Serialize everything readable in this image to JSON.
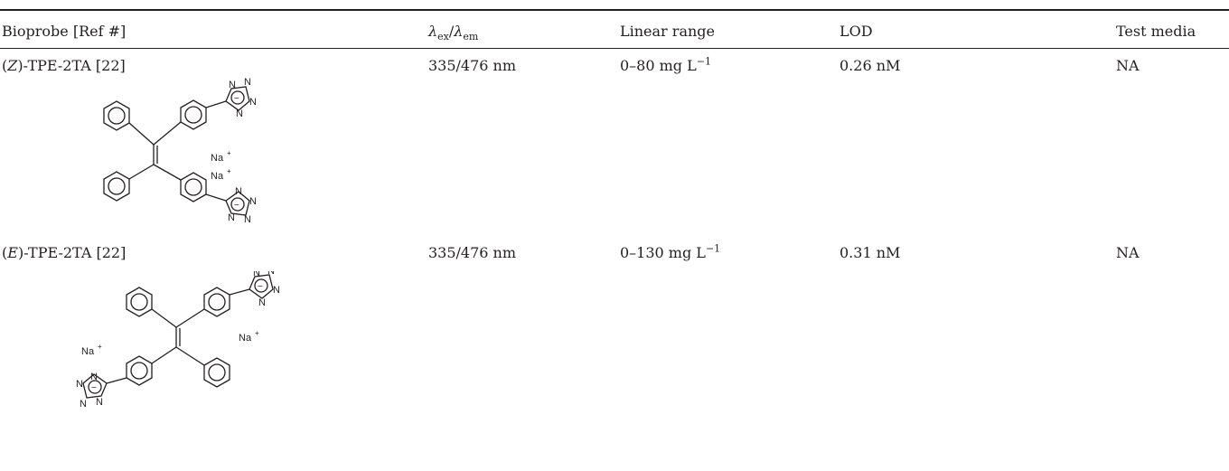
{
  "table": {
    "headers": {
      "bioprobe": "Bioprobe [Ref #]",
      "lambda_ex_sub": "ex",
      "lambda_sep": "/",
      "lambda_em_sub": "em",
      "linear_range": "Linear range",
      "lod": "LOD",
      "test_media": "Test media"
    },
    "rows": [
      {
        "isomer": "Z",
        "name_suffix": "-TPE-2TA [22]",
        "wavelengths": "335/476 nm",
        "linear_range_value": "0–80 mg L",
        "linear_range_exp": "−1",
        "lod": "0.26 nM",
        "test_media": "NA"
      },
      {
        "isomer": "E",
        "name_suffix": "-TPE-2TA [22]",
        "wavelengths": "335/476 nm",
        "linear_range_value": "0–130 mg L",
        "linear_range_exp": "−1",
        "lod": "0.31 nM",
        "test_media": "NA"
      }
    ],
    "structure_labels": {
      "sodium": "Na",
      "plus": "+",
      "nitrogen": "N",
      "minus": "−"
    }
  }
}
